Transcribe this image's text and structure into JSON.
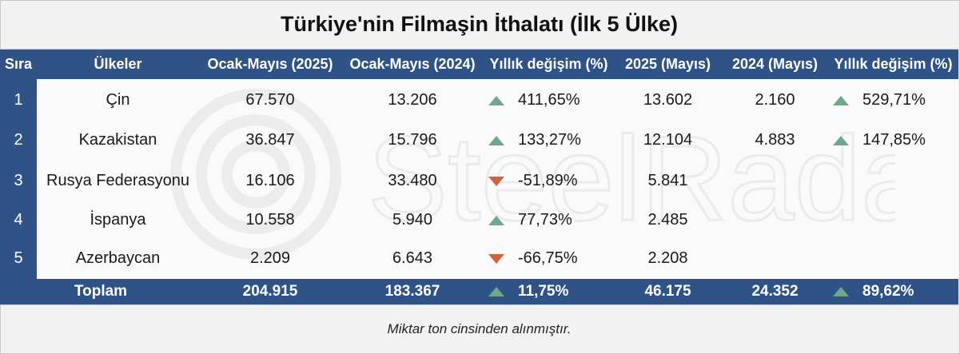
{
  "title": "Türkiye'nin Filmaşin İthalatı (İlk 5 Ülke)",
  "watermark": "SteelRadar",
  "colors": {
    "header_bg": "#2f5287",
    "up": "#6fa98c",
    "down": "#d0643e"
  },
  "footnote": "Miktar  ton cinsinden alınmıştır.",
  "chart_data": {
    "type": "table",
    "title": "Türkiye'nin Filmaşin İthalatı (İlk 5 Ülke)",
    "columns": [
      "Sıra",
      "Ülkeler",
      "Ocak-Mayıs (2025)",
      "Ocak-Mayıs (2024)",
      "Yıllık değişim (%)",
      "2025 (Mayıs)",
      "2024 (Mayıs)",
      "Yıllık değişim (%)"
    ],
    "rows": [
      {
        "rank": "1",
        "country": "Çin",
        "jm2025": "67.570",
        "jm2024": "13.206",
        "chg1": "411,65%",
        "chg1_dir": "up",
        "m2025": "13.602",
        "m2024": "2.160",
        "chg2": "529,71%",
        "chg2_dir": "up"
      },
      {
        "rank": "2",
        "country": "Kazakistan",
        "jm2025": "36.847",
        "jm2024": "15.796",
        "chg1": "133,27%",
        "chg1_dir": "up",
        "m2025": "12.104",
        "m2024": "4.883",
        "chg2": "147,85%",
        "chg2_dir": "up"
      },
      {
        "rank": "3",
        "country": "Rusya Federasyonu",
        "jm2025": "16.106",
        "jm2024": "33.480",
        "chg1": "-51,89%",
        "chg1_dir": "down",
        "m2025": "5.841",
        "m2024": "",
        "chg2": "",
        "chg2_dir": ""
      },
      {
        "rank": "4",
        "country": "İspanya",
        "jm2025": "10.558",
        "jm2024": "5.940",
        "chg1": "77,73%",
        "chg1_dir": "up",
        "m2025": "2.485",
        "m2024": "",
        "chg2": "",
        "chg2_dir": ""
      },
      {
        "rank": "5",
        "country": "Azerbaycan",
        "jm2025": "2.209",
        "jm2024": "6.643",
        "chg1": "-66,75%",
        "chg1_dir": "down",
        "m2025": "2.208",
        "m2024": "",
        "chg2": "",
        "chg2_dir": ""
      }
    ],
    "total": {
      "label": "Toplam",
      "jm2025": "204.915",
      "jm2024": "183.367",
      "chg1": "11,75%",
      "chg1_dir": "up",
      "m2025": "46.175",
      "m2024": "24.352",
      "chg2": "89,62%",
      "chg2_dir": "up"
    }
  }
}
